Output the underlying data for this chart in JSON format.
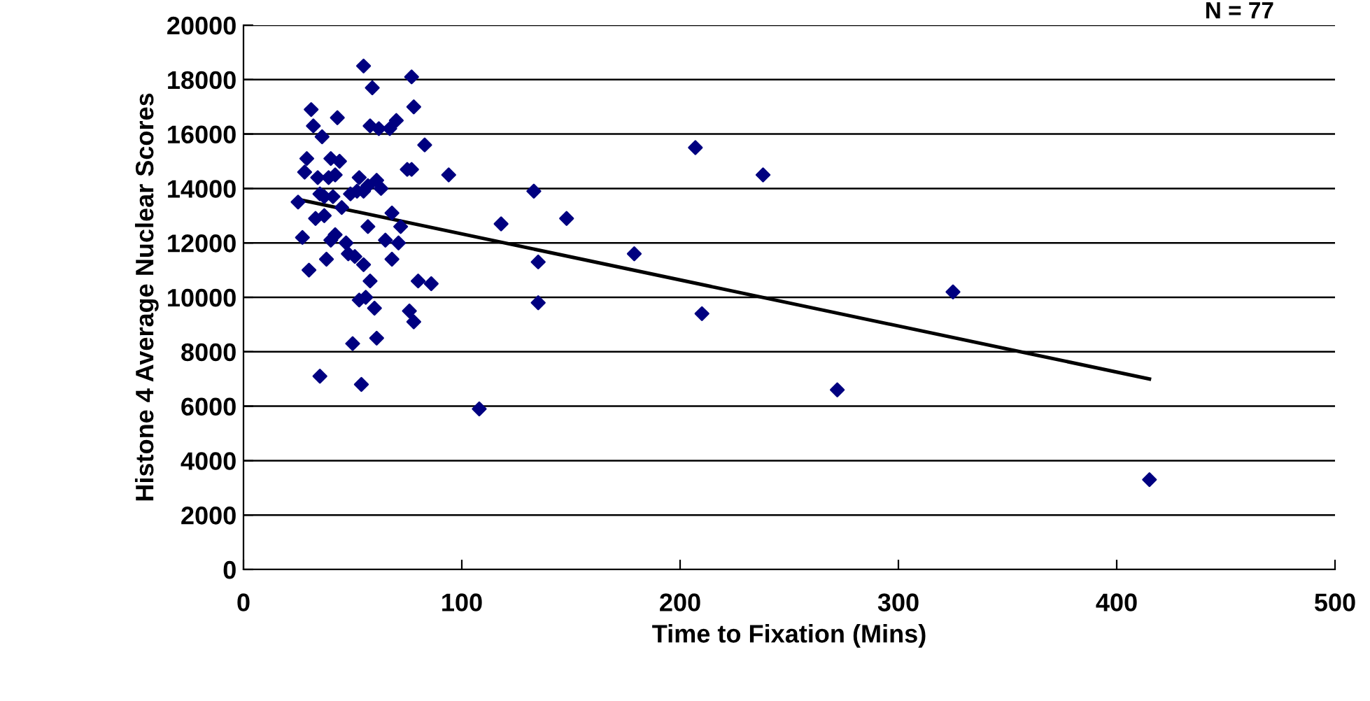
{
  "chart_data": {
    "type": "scatter",
    "xlabel": "Time to Fixation (Mins)",
    "ylabel": "Histone 4 Average Nuclear Scores",
    "annotations": [
      "N = 77"
    ],
    "series": [
      {
        "color": "#000080",
        "marker": "diamond",
        "x": [
          25,
          27,
          28,
          29,
          30,
          31,
          32,
          33,
          34,
          35,
          35,
          36,
          37,
          37,
          38,
          39,
          40,
          40,
          41,
          42,
          42,
          43,
          44,
          45,
          47,
          48,
          49,
          50,
          51,
          52,
          53,
          53,
          54,
          55,
          55,
          55,
          56,
          57,
          57,
          58,
          58,
          59,
          60,
          61,
          61,
          62,
          63,
          65,
          67,
          68,
          68,
          70,
          71,
          72,
          75,
          76,
          77,
          77,
          78,
          78,
          80,
          83,
          86,
          94,
          108,
          118,
          133,
          135,
          135,
          148,
          179,
          207,
          210,
          238,
          272,
          325,
          415
        ],
        "values": [
          13500,
          12200,
          14600,
          15100,
          11000,
          16900,
          16300,
          12900,
          14400,
          13800,
          7100,
          15900,
          13000,
          13700,
          11400,
          14400,
          15100,
          12100,
          13700,
          14500,
          12300,
          16600,
          15000,
          13300,
          12000,
          11600,
          13800,
          8300,
          11500,
          13900,
          9900,
          14400,
          6800,
          11200,
          13900,
          18500,
          10000,
          12600,
          14100,
          16300,
          10600,
          17700,
          9600,
          14300,
          8500,
          16200,
          14000,
          12100,
          16200,
          11400,
          13100,
          16500,
          12000,
          12600,
          14700,
          9500,
          14700,
          18100,
          17000,
          9100,
          10600,
          15600,
          10500,
          14500,
          5900,
          12700,
          13900,
          11300,
          9800,
          12900,
          11600,
          15500,
          9400,
          14500,
          6600,
          10200,
          3300
        ]
      },
      {
        "type": "line",
        "color": "#000000",
        "marker": "none",
        "line_style": "solid",
        "x": [
          25,
          415
        ],
        "values": [
          13600,
          7000
        ]
      }
    ],
    "xlim": [
      0,
      500
    ],
    "xticks": [
      0,
      100,
      200,
      300,
      400,
      500
    ],
    "ylim": [
      0,
      20000
    ],
    "yticks": [
      0,
      2000,
      4000,
      6000,
      8000,
      10000,
      12000,
      14000,
      16000,
      18000,
      20000
    ],
    "grid": "y",
    "legend": false
  }
}
